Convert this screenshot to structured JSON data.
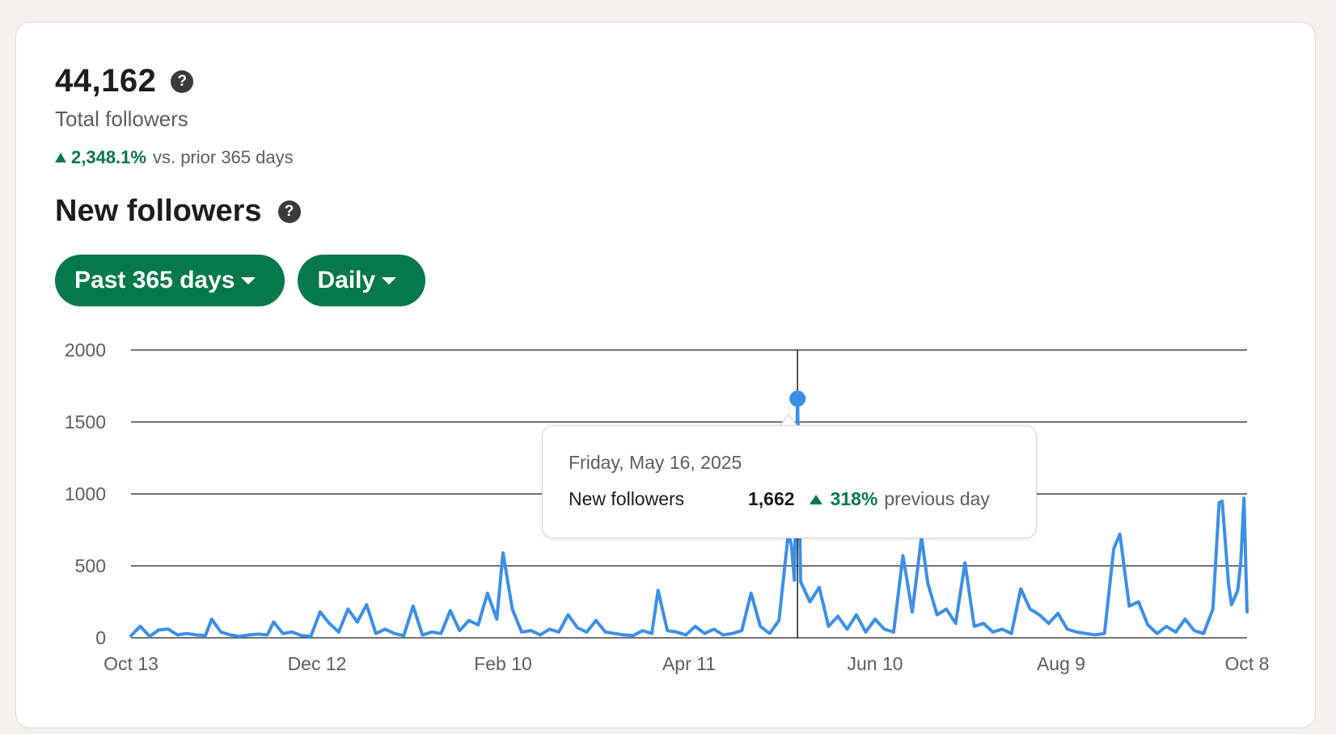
{
  "summary": {
    "total_followers": "44,162",
    "total_label": "Total followers",
    "change_pct": "2,348.1%",
    "change_text": "vs. prior 365 days",
    "help_glyph": "?"
  },
  "section": {
    "title": "New followers"
  },
  "filters": {
    "range": "Past 365 days",
    "interval": "Daily"
  },
  "tooltip": {
    "date": "Friday, May 16, 2025",
    "metric": "New followers",
    "value": "1,662",
    "change_pct": "318%",
    "change_suffix": "previous day"
  },
  "colors": {
    "accent_green": "#06794a",
    "line_blue": "#3b8fe8",
    "gridline": "#1d1d1d",
    "axis_text": "#5e5e5e"
  },
  "chart_data": {
    "type": "line",
    "title": "",
    "xlabel": "",
    "ylabel": "",
    "ylim": [
      0,
      2000
    ],
    "y_ticks": [
      0,
      500,
      1000,
      1500,
      2000
    ],
    "x_tick_labels": [
      "Oct 13",
      "Dec 12",
      "Feb 10",
      "Apr 11",
      "Jun 10",
      "Aug 9",
      "Oct 8"
    ],
    "grid": true,
    "highlight": {
      "date": "2025-05-16",
      "value": 1662
    },
    "series": [
      {
        "points": [
          [
            "2024-10-13",
            15
          ],
          [
            "2024-10-16",
            80
          ],
          [
            "2024-10-19",
            10
          ],
          [
            "2024-10-22",
            55
          ],
          [
            "2024-10-25",
            60
          ],
          [
            "2024-10-28",
            20
          ],
          [
            "2024-10-31",
            30
          ],
          [
            "2024-11-03",
            20
          ],
          [
            "2024-11-06",
            15
          ],
          [
            "2024-11-08",
            130
          ],
          [
            "2024-11-11",
            40
          ],
          [
            "2024-11-14",
            20
          ],
          [
            "2024-11-17",
            10
          ],
          [
            "2024-11-20",
            20
          ],
          [
            "2024-11-23",
            25
          ],
          [
            "2024-11-26",
            20
          ],
          [
            "2024-11-28",
            110
          ],
          [
            "2024-12-01",
            30
          ],
          [
            "2024-12-04",
            40
          ],
          [
            "2024-12-07",
            15
          ],
          [
            "2024-12-10",
            10
          ],
          [
            "2024-12-13",
            180
          ],
          [
            "2024-12-16",
            100
          ],
          [
            "2024-12-19",
            40
          ],
          [
            "2024-12-22",
            200
          ],
          [
            "2024-12-25",
            110
          ],
          [
            "2024-12-28",
            230
          ],
          [
            "2024-12-31",
            30
          ],
          [
            "2025-01-03",
            60
          ],
          [
            "2025-01-06",
            30
          ],
          [
            "2025-01-09",
            15
          ],
          [
            "2025-01-12",
            220
          ],
          [
            "2025-01-15",
            20
          ],
          [
            "2025-01-18",
            40
          ],
          [
            "2025-01-21",
            30
          ],
          [
            "2025-01-24",
            190
          ],
          [
            "2025-01-27",
            50
          ],
          [
            "2025-01-30",
            120
          ],
          [
            "2025-02-02",
            90
          ],
          [
            "2025-02-05",
            310
          ],
          [
            "2025-02-08",
            130
          ],
          [
            "2025-02-10",
            590
          ],
          [
            "2025-02-13",
            200
          ],
          [
            "2025-02-16",
            40
          ],
          [
            "2025-02-19",
            50
          ],
          [
            "2025-02-22",
            20
          ],
          [
            "2025-02-25",
            60
          ],
          [
            "2025-02-28",
            40
          ],
          [
            "2025-03-03",
            160
          ],
          [
            "2025-03-06",
            70
          ],
          [
            "2025-03-09",
            40
          ],
          [
            "2025-03-12",
            120
          ],
          [
            "2025-03-15",
            40
          ],
          [
            "2025-03-18",
            30
          ],
          [
            "2025-03-21",
            20
          ],
          [
            "2025-03-24",
            15
          ],
          [
            "2025-03-27",
            50
          ],
          [
            "2025-03-30",
            30
          ],
          [
            "2025-04-01",
            330
          ],
          [
            "2025-04-04",
            50
          ],
          [
            "2025-04-07",
            40
          ],
          [
            "2025-04-10",
            20
          ],
          [
            "2025-04-13",
            80
          ],
          [
            "2025-04-16",
            30
          ],
          [
            "2025-04-19",
            60
          ],
          [
            "2025-04-22",
            20
          ],
          [
            "2025-04-25",
            30
          ],
          [
            "2025-04-28",
            50
          ],
          [
            "2025-05-01",
            310
          ],
          [
            "2025-05-04",
            80
          ],
          [
            "2025-05-07",
            30
          ],
          [
            "2025-05-10",
            120
          ],
          [
            "2025-05-13",
            720
          ],
          [
            "2025-05-14",
            650
          ],
          [
            "2025-05-15",
            400
          ],
          [
            "2025-05-16",
            1662
          ],
          [
            "2025-05-17",
            390
          ],
          [
            "2025-05-20",
            250
          ],
          [
            "2025-05-23",
            350
          ],
          [
            "2025-05-26",
            80
          ],
          [
            "2025-05-29",
            150
          ],
          [
            "2025-06-01",
            60
          ],
          [
            "2025-06-04",
            160
          ],
          [
            "2025-06-07",
            40
          ],
          [
            "2025-06-10",
            130
          ],
          [
            "2025-06-13",
            60
          ],
          [
            "2025-06-16",
            40
          ],
          [
            "2025-06-19",
            570
          ],
          [
            "2025-06-22",
            180
          ],
          [
            "2025-06-25",
            700
          ],
          [
            "2025-06-27",
            380
          ],
          [
            "2025-06-30",
            160
          ],
          [
            "2025-07-03",
            200
          ],
          [
            "2025-07-06",
            100
          ],
          [
            "2025-07-09",
            520
          ],
          [
            "2025-07-12",
            80
          ],
          [
            "2025-07-15",
            100
          ],
          [
            "2025-07-18",
            40
          ],
          [
            "2025-07-21",
            60
          ],
          [
            "2025-07-24",
            30
          ],
          [
            "2025-07-27",
            340
          ],
          [
            "2025-07-30",
            200
          ],
          [
            "2025-08-02",
            160
          ],
          [
            "2025-08-05",
            100
          ],
          [
            "2025-08-08",
            170
          ],
          [
            "2025-08-11",
            60
          ],
          [
            "2025-08-14",
            40
          ],
          [
            "2025-08-17",
            30
          ],
          [
            "2025-08-20",
            20
          ],
          [
            "2025-08-23",
            30
          ],
          [
            "2025-08-26",
            620
          ],
          [
            "2025-08-28",
            720
          ],
          [
            "2025-08-31",
            220
          ],
          [
            "2025-09-03",
            250
          ],
          [
            "2025-09-06",
            90
          ],
          [
            "2025-09-09",
            30
          ],
          [
            "2025-09-12",
            80
          ],
          [
            "2025-09-15",
            40
          ],
          [
            "2025-09-18",
            130
          ],
          [
            "2025-09-21",
            50
          ],
          [
            "2025-09-24",
            30
          ],
          [
            "2025-09-27",
            200
          ],
          [
            "2025-09-29",
            940
          ],
          [
            "2025-09-30",
            950
          ],
          [
            "2025-10-02",
            380
          ],
          [
            "2025-10-03",
            230
          ],
          [
            "2025-10-05",
            330
          ],
          [
            "2025-10-06",
            530
          ],
          [
            "2025-10-07",
            970
          ],
          [
            "2025-10-08",
            180
          ]
        ]
      }
    ]
  }
}
